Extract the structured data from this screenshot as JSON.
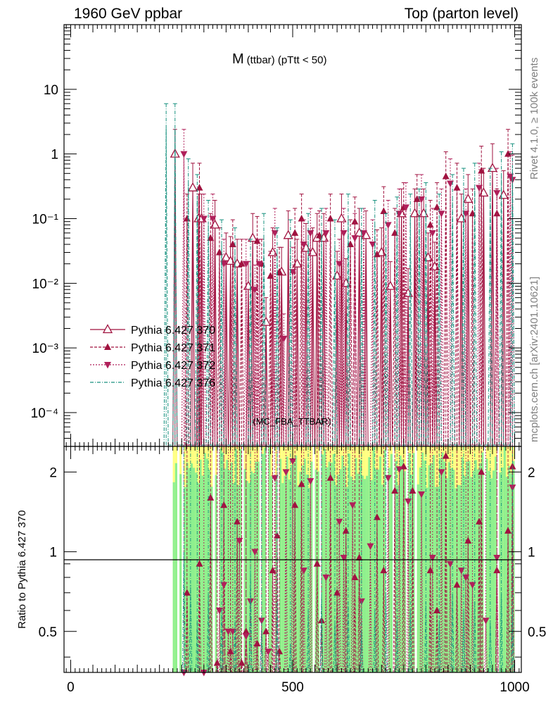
{
  "header": {
    "left": "1960 GeV ppbar",
    "right": "Top (parton level)"
  },
  "side_labels": {
    "rivet": "Rivet 4.1.0, ≥ 100k events",
    "mcplots": "mcplots.cern.ch [arXiv:2401.10621]"
  },
  "watermark": "(MC_FBA_TTBAR)",
  "colors": {
    "c370": "#a0123f",
    "c371": "#a0123f",
    "c372": "#b0205a",
    "c376": "#17917f",
    "band_green": "#8ef08e",
    "band_yellow": "#ffff80"
  },
  "chart_data": [
    {
      "type": "line",
      "title": "M (ttbar) (pTtt < 50)",
      "title_main": "M",
      "title_sub": "(ttbar) (pTtt < 50)",
      "xlabel": "",
      "ylabel": "",
      "yscale": "log",
      "xlim": [
        -15,
        1015
      ],
      "ylim": [
        3e-05,
        100
      ],
      "ytick_labels": [
        {
          "v": 10,
          "t": "10"
        },
        {
          "v": 1,
          "t": "1"
        },
        {
          "v": 0.1,
          "t": "10⁻¹"
        },
        {
          "v": 0.01,
          "t": "10⁻²"
        },
        {
          "v": 0.001,
          "t": "10⁻³"
        },
        {
          "v": 0.0001,
          "t": "10⁻⁴"
        }
      ],
      "legend": [
        "Pythia 6.427 370",
        "Pythia 6.427 371",
        "Pythia 6.427 372",
        "Pythia 6.427 376"
      ],
      "series": [
        {
          "name": "Pythia 6.427 370",
          "marker": "open-triangle-up",
          "x": [
            235,
            275,
            288,
            295,
            325,
            350,
            360,
            375,
            400,
            410,
            440,
            455,
            475,
            490,
            510,
            530,
            545,
            555,
            570,
            600,
            610,
            620,
            650,
            665,
            700,
            720,
            745,
            760,
            775,
            795,
            805,
            820,
            880,
            895,
            930,
            950,
            975
          ],
          "y": [
            1.0,
            0.3,
            0.1,
            0.1,
            0.08,
            0.025,
            0.022,
            0.02,
            0.009,
            0.05,
            0.0025,
            0.03,
            0.015,
            0.055,
            0.02,
            0.035,
            0.03,
            0.05,
            0.05,
            0.013,
            0.1,
            0.01,
            0.06,
            0.055,
            0.03,
            0.009,
            0.12,
            0.007,
            0.12,
            0.12,
            0.025,
            0.018,
            0.1,
            0.2,
            0.25,
            0.6,
            0.23
          ]
        },
        {
          "name": "Pythia 6.427 371",
          "marker": "filled-triangle-up",
          "x": [
            262,
            290,
            315,
            335,
            365,
            385,
            420,
            430,
            450,
            470,
            505,
            520,
            560,
            585,
            630,
            640,
            690,
            705,
            730,
            750,
            780,
            810,
            825,
            845,
            870,
            905,
            925,
            960,
            985
          ],
          "y": [
            0.1,
            0.3,
            0.05,
            0.03,
            0.04,
            0.02,
            0.045,
            0.02,
            0.013,
            0.015,
            0.06,
            0.1,
            0.055,
            0.1,
            0.04,
            0.09,
            0.028,
            0.13,
            0.06,
            0.15,
            0.2,
            0.08,
            0.15,
            0.45,
            0.3,
            0.12,
            0.55,
            0.12,
            1.0
          ]
        },
        {
          "name": "Pythia 6.427 372",
          "marker": "filled-triangle-down",
          "x": [
            255,
            300,
            320,
            345,
            395,
            415,
            425,
            460,
            480,
            500,
            525,
            540,
            575,
            605,
            615,
            640,
            660,
            680,
            715,
            740,
            755,
            790,
            815,
            835,
            855,
            890,
            920,
            960,
            990,
            995
          ],
          "y": [
            1.0,
            0.1,
            0.1,
            0.02,
            0.02,
            0.008,
            0.02,
            0.06,
            0.0014,
            0.015,
            0.04,
            0.06,
            0.06,
            0.02,
            0.06,
            0.05,
            0.06,
            0.04,
            0.08,
            0.12,
            0.15,
            0.2,
            0.06,
            0.12,
            0.35,
            0.12,
            0.3,
            0.25,
            0.45,
            0.4
          ]
        },
        {
          "name": "Pythia 6.427 376",
          "marker": "none",
          "x": [
            215,
            235,
            265,
            285,
            310,
            340,
            370,
            405,
            435,
            465,
            495,
            535,
            565,
            595,
            625,
            655,
            685,
            710,
            735,
            765,
            785,
            800,
            830,
            860,
            885,
            910,
            945,
            970,
            995
          ],
          "y": [
            2.5,
            2.5,
            0.35,
            0.2,
            0.08,
            0.04,
            0.03,
            0.02,
            0.05,
            0.03,
            0.04,
            0.05,
            0.06,
            0.04,
            0.1,
            0.06,
            0.08,
            0.05,
            0.09,
            0.1,
            0.12,
            0.15,
            0.1,
            0.2,
            0.25,
            0.3,
            0.25,
            0.45,
            0.6
          ]
        }
      ]
    },
    {
      "type": "line",
      "title": "",
      "xlabel": "",
      "ylabel": "Ratio to Pythia 6.427 370",
      "yscale": "log",
      "xlim": [
        -15,
        1015
      ],
      "ylim": [
        0.35,
        2.5
      ],
      "xticks": [
        0,
        500,
        1000
      ],
      "yticks": [
        0.5,
        1,
        2
      ],
      "reference_line": 1,
      "series": [
        {
          "name": "Pythia 6.427 371",
          "x": [
            262,
            290,
            315,
            330,
            345,
            360,
            375,
            385,
            395,
            420,
            440,
            455,
            465,
            470,
            505,
            520,
            555,
            565,
            585,
            600,
            620,
            640,
            650,
            690,
            705,
            730,
            750,
            770,
            810,
            825,
            845,
            870,
            895,
            920,
            925,
            960,
            985,
            995
          ],
          "y": [
            0.7,
            0.9,
            1.6,
            0.38,
            1.5,
            0.42,
            1.3,
            0.38,
            0.5,
            0.45,
            0.5,
            0.85,
            1.15,
            0.42,
            1.5,
            1.8,
            0.9,
            0.55,
            1.9,
            0.7,
            1.2,
            0.8,
            0.95,
            1.35,
            0.85,
            1.7,
            2.1,
            1.7,
            0.85,
            0.6,
            2.3,
            0.75,
            1.1,
            1.3,
            2.0,
            0.85,
            1.2,
            2.1
          ]
        },
        {
          "name": "Pythia 6.427 372",
          "x": [
            255,
            300,
            335,
            345,
            355,
            365,
            380,
            395,
            405,
            415,
            430,
            445,
            460,
            485,
            500,
            525,
            540,
            575,
            605,
            615,
            635,
            655,
            675,
            715,
            740,
            760,
            790,
            815,
            835,
            855,
            880,
            890,
            905,
            935,
            960,
            995
          ],
          "y": [
            0.35,
            0.35,
            0.6,
            0.75,
            0.5,
            0.5,
            1.1,
            0.48,
            0.65,
            1.0,
            0.55,
            0.42,
            1.9,
            2.0,
            2.2,
            0.85,
            1.85,
            0.8,
            1.3,
            0.95,
            1.5,
            0.65,
            1.05,
            1.9,
            2.05,
            1.55,
            1.65,
            0.95,
            2.0,
            0.9,
            0.85,
            0.8,
            0.75,
            0.55,
            0.95,
            1.75
          ]
        },
        {
          "name": "Pythia 6.427 376",
          "x": [
            255,
            270,
            285,
            310,
            340,
            370,
            405,
            430,
            465,
            495,
            535,
            565,
            595,
            625,
            655,
            685,
            710,
            735,
            765,
            800,
            830,
            860,
            885,
            910,
            945,
            970,
            995
          ],
          "y": [
            1.0,
            0.75,
            0.55,
            0.7,
            0.6,
            0.55,
            0.85,
            0.5,
            0.65,
            0.45,
            0.6,
            0.7,
            0.55,
            0.65,
            0.5,
            0.6,
            0.7,
            0.55,
            0.6,
            0.65,
            0.55,
            0.7,
            0.6,
            0.65,
            0.55,
            0.7,
            0.6
          ]
        }
      ]
    }
  ]
}
